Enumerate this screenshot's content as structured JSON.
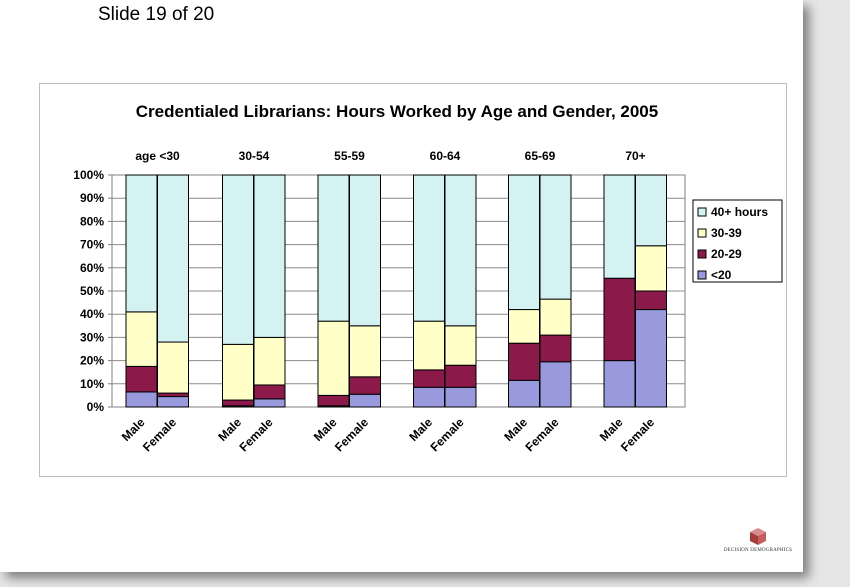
{
  "slide": {
    "label": "Slide 19 of 20"
  },
  "logo": {
    "text": "DECISION DEMOGRAPHICS"
  },
  "chart_data": {
    "type": "bar",
    "stacked": true,
    "title": "Credentialed Librarians:  Hours Worked by Age and Gender, 2005",
    "xlabel": "",
    "ylabel": "",
    "ylim": [
      0,
      100
    ],
    "y_ticks": [
      "0%",
      "10%",
      "20%",
      "30%",
      "40%",
      "50%",
      "60%",
      "70%",
      "80%",
      "90%",
      "100%"
    ],
    "groups": [
      "age <30",
      "30-54",
      "55-59",
      "60-64",
      "65-69",
      "70+"
    ],
    "categories": [
      "Male",
      "Female",
      "Male",
      "Female",
      "Male",
      "Female",
      "Male",
      "Female",
      "Male",
      "Female",
      "Male",
      "Female"
    ],
    "legend_position": "right",
    "grid": true,
    "series": [
      {
        "name": "<20",
        "color": "#9999dd",
        "values": [
          6.5,
          4.5,
          0.5,
          3.5,
          0.5,
          5.5,
          8.5,
          8.5,
          11.5,
          19.5,
          20,
          42
        ]
      },
      {
        "name": "20-29",
        "color": "#8b1a4a",
        "values": [
          11,
          1.5,
          2.5,
          6,
          4.5,
          7.5,
          7.5,
          9.5,
          16,
          11.5,
          35.5,
          8
        ]
      },
      {
        "name": "30-39",
        "color": "#ffffc8",
        "values": [
          23.5,
          22,
          24,
          20.5,
          32,
          22,
          21,
          17,
          14.5,
          15.5,
          0,
          19.5
        ]
      },
      {
        "name": "40+ hours",
        "color": "#d4f2f2",
        "values": [
          59,
          72,
          73,
          70,
          63,
          65,
          63,
          65,
          58,
          53.5,
          44.5,
          30.5
        ]
      }
    ]
  }
}
